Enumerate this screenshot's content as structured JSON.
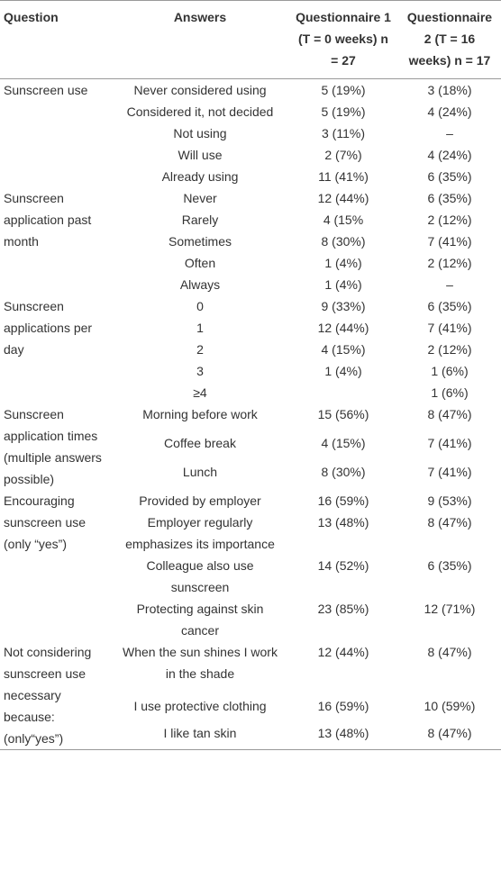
{
  "table": {
    "header": [
      "Question",
      "Answers",
      "Questionnaire 1 (T = 0 weeks) n = 27",
      "Questionnaire 2 (T = 16 weeks) n = 17"
    ],
    "groups": [
      {
        "question": "Sunscreen use",
        "rows": [
          [
            "Never considered using",
            "5 (19%)",
            "3 (18%)"
          ],
          [
            "Considered it, not decided",
            "5 (19%)",
            "4 (24%)"
          ],
          [
            "Not using",
            "3 (11%)",
            "–"
          ],
          [
            "Will use",
            "2 (7%)",
            "4 (24%)"
          ],
          [
            "Already using",
            "11 (41%)",
            "6 (35%)"
          ]
        ]
      },
      {
        "question": "Sunscreen application past month",
        "rows": [
          [
            "Never",
            "12 (44%)",
            "6 (35%)"
          ],
          [
            "Rarely",
            "4 (15%",
            "2 (12%)"
          ],
          [
            "Sometimes",
            "8 (30%)",
            "7 (41%)"
          ],
          [
            "Often",
            "1 (4%)",
            "2 (12%)"
          ],
          [
            "Always",
            "1 (4%)",
            "–"
          ]
        ]
      },
      {
        "question": "Sunscreen applications per day",
        "rows": [
          [
            "0",
            "9 (33%)",
            "6 (35%)"
          ],
          [
            "1",
            "12 (44%)",
            "7 (41%)"
          ],
          [
            "2",
            "4 (15%)",
            "2 (12%)"
          ],
          [
            "3",
            "1 (4%)",
            "1 (6%)"
          ],
          [
            "≥4",
            null,
            "1 (6%)"
          ]
        ]
      },
      {
        "question": "Sunscreen application times (multiple answers possible)",
        "rows": [
          [
            "Morning before work",
            "15 (56%)",
            "8 (47%)"
          ],
          [
            "Coffee break",
            "4 (15%)",
            "7 (41%)"
          ],
          [
            "Lunch",
            "8 (30%)",
            "7 (41%)"
          ]
        ]
      },
      {
        "question": "Encouraging sunscreen use (only “yes”)",
        "rows": [
          [
            "Provided by employer",
            "16 (59%)",
            "9 (53%)"
          ],
          [
            "Employer regularly emphasizes its importance",
            "13 (48%)",
            "8 (47%)"
          ],
          [
            "Colleague also use sunscreen",
            "14 (52%)",
            "6 (35%)"
          ],
          [
            "Protecting against skin cancer",
            "23 (85%)",
            "12 (71%)"
          ]
        ]
      },
      {
        "question": "Not considering sunscreen use necessary because: (only“yes”)",
        "rows": [
          [
            "When the sun shines I work in the shade",
            "12 (44%)",
            "8 (47%)"
          ],
          [
            "I use protective clothing",
            "16 (59%)",
            "10 (59%)"
          ],
          [
            "I like tan skin",
            "13 (48%)",
            "8 (47%)"
          ]
        ]
      }
    ]
  }
}
